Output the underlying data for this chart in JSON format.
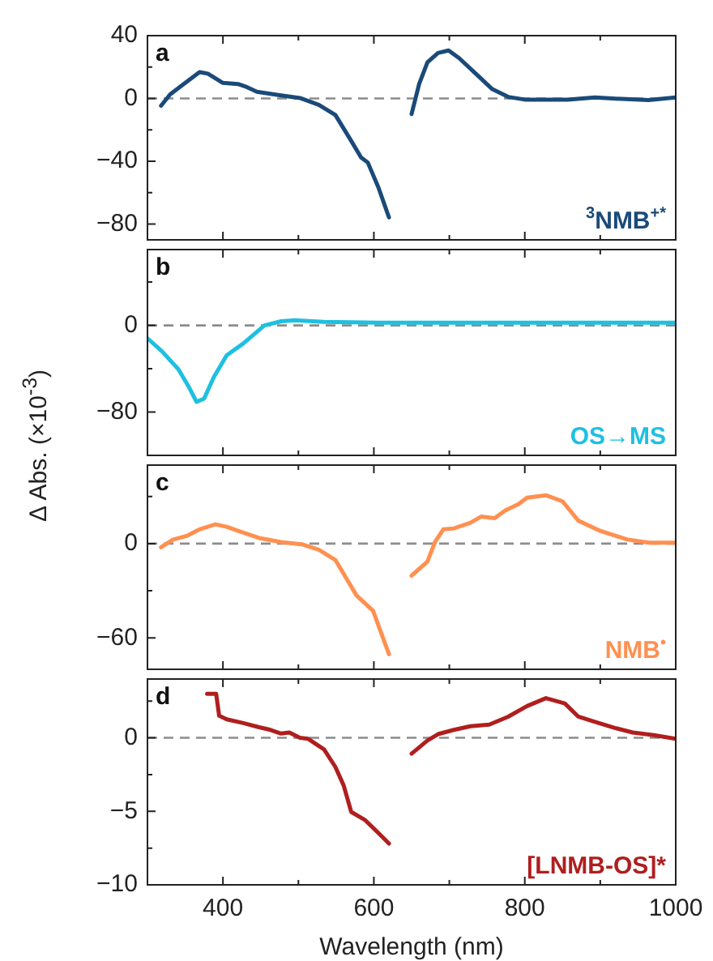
{
  "chart_data": [
    {
      "type": "line",
      "annotations": [
        "a"
      ],
      "tick_labels": "y",
      "xlim": [
        300,
        1000
      ],
      "xticks": [
        400,
        {
          "value": 500,
          "label": null
        },
        600,
        {
          "value": 700,
          "label": null
        },
        800,
        {
          "value": 900,
          "label": null
        },
        1000
      ],
      "ylim": [
        -90,
        40
      ],
      "yticks": [
        40,
        {
          "value": 20,
          "label": null
        },
        0,
        {
          "value": -20,
          "label": null
        },
        -40,
        {
          "value": -60,
          "label": null
        },
        -80
      ],
      "ref_lines": [
        {
          "axis": "y",
          "value": 0,
          "color": "#8c8c8c",
          "line_style": "dashed"
        }
      ],
      "series": [
        {
          "name": "$^{3}$NMB$^{+*}$",
          "color": "#1a4a78",
          "x": [
            318,
            330,
            348,
            369,
            380,
            400,
            420,
            430,
            445,
            477,
            502,
            527,
            549,
            570,
            583,
            592,
            606,
            620,
            635,
            650,
            660,
            671,
            685,
            699,
            713,
            735,
            757,
            778,
            800,
            857,
            893,
            928,
            964,
            1000
          ],
          "values": [
            -4.6,
            2.6,
            9.2,
            16.8,
            15.8,
            9.9,
            9.2,
            7.6,
            4.3,
            2,
            0.3,
            -4,
            -10.5,
            -27,
            -37.5,
            -40.8,
            -56.6,
            -75.7,
            null,
            -9.9,
            9.2,
            23,
            29,
            30.6,
            25.7,
            15.8,
            5.9,
            1,
            -0.7,
            -0.7,
            0.7,
            -0.3,
            -1,
            0.7
          ]
        }
      ]
    },
    {
      "type": "line",
      "annotations": [
        "b"
      ],
      "tick_labels": "y",
      "ylabel": "Δ Abs. (×10$^{-3}$)",
      "xlim": [
        300,
        1000
      ],
      "xticks": [
        400,
        {
          "value": 500,
          "label": null
        },
        600,
        {
          "value": 700,
          "label": null
        },
        800,
        {
          "value": 900,
          "label": null
        },
        1000
      ],
      "ylim": [
        -120,
        70
      ],
      "yticks": [
        {
          "value": 40,
          "label": null
        },
        0,
        {
          "value": -40,
          "label": null
        },
        -80
      ],
      "ref_lines": [
        {
          "axis": "y",
          "value": 0,
          "color": "#8c8c8c",
          "line_style": "dashed"
        }
      ],
      "series": [
        {
          "name": "OS→MS",
          "color": "#1ec0e0",
          "x": [
            300,
            319,
            341,
            355,
            365,
            375,
            388,
            405,
            427,
            455,
            477,
            495,
            534,
            606,
            750,
            1000
          ],
          "values": [
            -11.9,
            -23.8,
            -40.5,
            -57,
            -70.5,
            -67.6,
            -47.6,
            -27.6,
            -16.7,
            0,
            3.8,
            4.8,
            3.3,
            2.4,
            2.4,
            2.4
          ]
        }
      ]
    },
    {
      "type": "line",
      "annotations": [
        "c"
      ],
      "tick_labels": "y",
      "xlim": [
        300,
        1000
      ],
      "xticks": [
        400,
        {
          "value": 500,
          "label": null
        },
        600,
        {
          "value": 700,
          "label": null
        },
        800,
        {
          "value": 900,
          "label": null
        },
        1000
      ],
      "ylim": [
        -80,
        50
      ],
      "yticks": [
        {
          "value": 30,
          "label": null
        },
        0,
        {
          "value": -30,
          "label": null
        },
        -60
      ],
      "ref_lines": [
        {
          "axis": "y",
          "value": 0,
          "color": "#8c8c8c",
          "line_style": "dashed"
        }
      ],
      "series": [
        {
          "name": "NMB$^{•}$",
          "color": "#ff9050",
          "x": [
            318,
            334,
            352,
            369,
            390,
            405,
            420,
            448,
            477,
            506,
            527,
            549,
            577,
            599,
            620,
            635,
            650,
            671,
            681,
            692,
            706,
            728,
            742,
            760,
            774,
            792,
            803,
            828,
            850,
            871,
            900,
            936,
            965,
            1000
          ],
          "values": [
            -2.3,
            2.6,
            4.9,
            9.1,
            12.3,
            10.7,
            8.1,
            3.6,
            1,
            -0.6,
            -3.9,
            -10.4,
            -33,
            -42.8,
            -70.4,
            null,
            -20.4,
            -11.4,
            1,
            9.1,
            9.7,
            13.3,
            17.2,
            16.2,
            21.1,
            25.3,
            29.2,
            30.8,
            26.9,
            14.6,
            8.1,
            2.6,
            0.6,
            0.6
          ]
        }
      ]
    },
    {
      "type": "line",
      "annotations": [
        "d"
      ],
      "xlabel": "Wavelength (nm)",
      "xlim": [
        300,
        1000
      ],
      "xticks": [
        400,
        {
          "value": 500,
          "label": null
        },
        600,
        {
          "value": 700,
          "label": null
        },
        800,
        {
          "value": 900,
          "label": null
        },
        1000
      ],
      "ylim": [
        -10,
        4
      ],
      "yticks": [
        {
          "value": 2.5,
          "label": null
        },
        0,
        {
          "value": -2.5,
          "label": null
        },
        -5,
        {
          "value": -7.5,
          "label": null
        },
        -10
      ],
      "ref_lines": [
        {
          "axis": "y",
          "value": 0,
          "color": "#8c8c8c",
          "line_style": "dashed"
        }
      ],
      "series": [
        {
          "name": "[LNMB-OS]*",
          "color": "#b01e1e",
          "x": [
            379,
            391,
            395,
            405,
            427,
            448,
            463,
            477,
            488,
            502,
            513,
            534,
            549,
            560,
            570,
            588,
            606,
            620,
            635,
            650,
            671,
            685,
            706,
            728,
            753,
            778,
            803,
            828,
            853,
            871,
            893,
            921,
            943,
            971,
            1000
          ],
          "values": [
            3,
            3,
            1.5,
            1.26,
            1,
            0.72,
            0.54,
            0.29,
            0.36,
            0,
            -0.07,
            -0.79,
            -1.98,
            -3.24,
            -5.04,
            -5.58,
            -6.47,
            -7.19,
            null,
            -1.08,
            -0.18,
            0.25,
            0.54,
            0.79,
            0.9,
            1.44,
            2.16,
            2.7,
            2.34,
            1.44,
            1.08,
            0.65,
            0.36,
            0.18,
            -0.07
          ]
        }
      ]
    }
  ]
}
